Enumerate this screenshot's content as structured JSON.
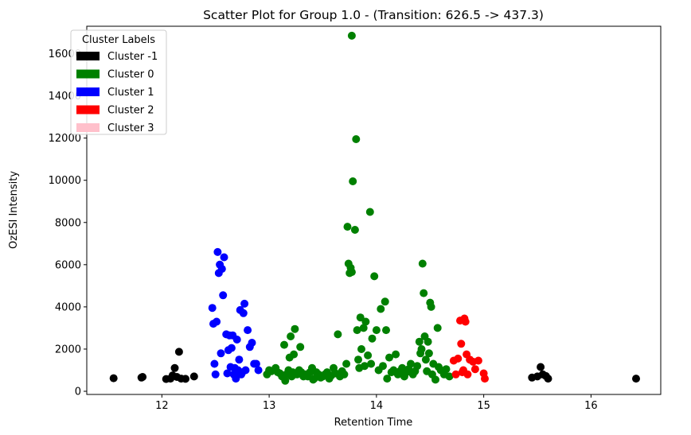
{
  "chart_data": {
    "type": "scatter",
    "title": "Scatter Plot for Group 1.0 -  (Transition: 626.5 -> 437.3)",
    "xlabel": "Retention Time",
    "ylabel": "OzESI Intensity",
    "xlim": [
      11.3,
      16.65
    ],
    "ylim": [
      -150,
      17300
    ],
    "xticks": [
      12,
      13,
      14,
      15,
      16
    ],
    "yticks": [
      0,
      2000,
      4000,
      6000,
      8000,
      10000,
      12000,
      14000,
      16000
    ],
    "grid": false,
    "legend": {
      "title": "Cluster Labels",
      "position": "top-left"
    },
    "series": [
      {
        "name": "Cluster -1",
        "color": "#000000",
        "points": [
          [
            11.55,
            620
          ],
          [
            11.81,
            650
          ],
          [
            11.82,
            680
          ],
          [
            12.04,
            580
          ],
          [
            12.08,
            600
          ],
          [
            12.1,
            750
          ],
          [
            12.12,
            1100
          ],
          [
            12.14,
            680
          ],
          [
            12.16,
            1870
          ],
          [
            12.18,
            600
          ],
          [
            12.22,
            590
          ],
          [
            12.3,
            700
          ],
          [
            15.45,
            650
          ],
          [
            15.5,
            700
          ],
          [
            15.53,
            1150
          ],
          [
            15.55,
            800
          ],
          [
            15.58,
            720
          ],
          [
            15.6,
            600
          ],
          [
            16.42,
            600
          ]
        ]
      },
      {
        "name": "Cluster 0",
        "color": "#008000",
        "points": [
          [
            12.98,
            800
          ],
          [
            13.0,
            1000
          ],
          [
            13.02,
            950
          ],
          [
            13.06,
            1100
          ],
          [
            13.08,
            900
          ],
          [
            13.1,
            850
          ],
          [
            13.12,
            700
          ],
          [
            13.14,
            2200
          ],
          [
            13.15,
            500
          ],
          [
            13.16,
            800
          ],
          [
            13.18,
            1000
          ],
          [
            13.19,
            1600
          ],
          [
            13.2,
            2600
          ],
          [
            13.21,
            700
          ],
          [
            13.22,
            900
          ],
          [
            13.23,
            1750
          ],
          [
            13.24,
            2950
          ],
          [
            13.26,
            800
          ],
          [
            13.28,
            1000
          ],
          [
            13.29,
            2100
          ],
          [
            13.3,
            900
          ],
          [
            13.32,
            700
          ],
          [
            13.34,
            800
          ],
          [
            13.36,
            700
          ],
          [
            13.38,
            900
          ],
          [
            13.4,
            1100
          ],
          [
            13.41,
            550
          ],
          [
            13.42,
            600
          ],
          [
            13.44,
            900
          ],
          [
            13.46,
            800
          ],
          [
            13.48,
            650
          ],
          [
            13.5,
            700
          ],
          [
            13.52,
            800
          ],
          [
            13.54,
            900
          ],
          [
            13.56,
            600
          ],
          [
            13.58,
            750
          ],
          [
            13.6,
            1100
          ],
          [
            13.62,
            850
          ],
          [
            13.64,
            2700
          ],
          [
            13.66,
            700
          ],
          [
            13.68,
            950
          ],
          [
            13.7,
            800
          ],
          [
            13.72,
            1300
          ],
          [
            13.73,
            7800
          ],
          [
            13.74,
            6050
          ],
          [
            13.75,
            5600
          ],
          [
            13.76,
            5850
          ],
          [
            13.77,
            5650
          ],
          [
            13.77,
            16850
          ],
          [
            13.78,
            9950
          ],
          [
            13.8,
            7650
          ],
          [
            13.81,
            11950
          ],
          [
            13.82,
            2900
          ],
          [
            13.83,
            1500
          ],
          [
            13.84,
            1100
          ],
          [
            13.85,
            3500
          ],
          [
            13.86,
            2000
          ],
          [
            13.88,
            3000
          ],
          [
            13.89,
            1200
          ],
          [
            13.9,
            3300
          ],
          [
            13.92,
            1700
          ],
          [
            13.94,
            8500
          ],
          [
            13.95,
            1300
          ],
          [
            13.96,
            2500
          ],
          [
            13.98,
            5450
          ],
          [
            14.0,
            2900
          ],
          [
            14.02,
            1000
          ],
          [
            14.04,
            3900
          ],
          [
            14.06,
            1200
          ],
          [
            14.08,
            4250
          ],
          [
            14.09,
            2900
          ],
          [
            14.1,
            600
          ],
          [
            14.12,
            1600
          ],
          [
            14.14,
            900
          ],
          [
            14.16,
            1000
          ],
          [
            14.18,
            1750
          ],
          [
            14.2,
            800
          ],
          [
            14.22,
            950
          ],
          [
            14.24,
            1100
          ],
          [
            14.26,
            700
          ],
          [
            14.28,
            900
          ],
          [
            14.3,
            1050
          ],
          [
            14.32,
            1300
          ],
          [
            14.34,
            800
          ],
          [
            14.36,
            950
          ],
          [
            14.38,
            1200
          ],
          [
            14.4,
            2350
          ],
          [
            14.41,
            1800
          ],
          [
            14.42,
            2000
          ],
          [
            14.43,
            6050
          ],
          [
            14.44,
            4650
          ],
          [
            14.45,
            2600
          ],
          [
            14.46,
            1500
          ],
          [
            14.47,
            950
          ],
          [
            14.48,
            2350
          ],
          [
            14.49,
            1800
          ],
          [
            14.5,
            4200
          ],
          [
            14.51,
            4000
          ],
          [
            14.52,
            800
          ],
          [
            14.53,
            1300
          ],
          [
            14.55,
            550
          ],
          [
            14.57,
            3000
          ],
          [
            14.58,
            1150
          ],
          [
            14.6,
            1000
          ],
          [
            14.63,
            800
          ],
          [
            14.65,
            1050
          ],
          [
            14.68,
            700
          ]
        ]
      },
      {
        "name": "Cluster 1",
        "color": "#0000ff",
        "points": [
          [
            12.47,
            3950
          ],
          [
            12.48,
            3200
          ],
          [
            12.49,
            1300
          ],
          [
            12.5,
            800
          ],
          [
            12.51,
            3300
          ],
          [
            12.52,
            6600
          ],
          [
            12.53,
            5600
          ],
          [
            12.54,
            6000
          ],
          [
            12.55,
            1800
          ],
          [
            12.56,
            5800
          ],
          [
            12.57,
            4550
          ],
          [
            12.58,
            6350
          ],
          [
            12.6,
            2700
          ],
          [
            12.61,
            850
          ],
          [
            12.62,
            1950
          ],
          [
            12.63,
            2650
          ],
          [
            12.64,
            1150
          ],
          [
            12.65,
            2050
          ],
          [
            12.66,
            2650
          ],
          [
            12.67,
            800
          ],
          [
            12.68,
            1100
          ],
          [
            12.69,
            600
          ],
          [
            12.7,
            2450
          ],
          [
            12.71,
            1000
          ],
          [
            12.72,
            1500
          ],
          [
            12.73,
            3850
          ],
          [
            12.74,
            800
          ],
          [
            12.75,
            900
          ],
          [
            12.76,
            3700
          ],
          [
            12.77,
            4150
          ],
          [
            12.78,
            1000
          ],
          [
            12.8,
            2900
          ],
          [
            12.82,
            2100
          ],
          [
            12.84,
            2300
          ],
          [
            12.86,
            1300
          ],
          [
            12.88,
            1300
          ],
          [
            12.9,
            1000
          ]
        ]
      },
      {
        "name": "Cluster 2",
        "color": "#ff0000",
        "points": [
          [
            14.72,
            1450
          ],
          [
            14.74,
            800
          ],
          [
            14.76,
            1550
          ],
          [
            14.78,
            3350
          ],
          [
            14.79,
            2250
          ],
          [
            14.8,
            900
          ],
          [
            14.81,
            1000
          ],
          [
            14.82,
            3450
          ],
          [
            14.83,
            3300
          ],
          [
            14.84,
            1750
          ],
          [
            14.85,
            800
          ],
          [
            14.87,
            1500
          ],
          [
            14.9,
            1400
          ],
          [
            14.92,
            1050
          ],
          [
            14.95,
            1450
          ],
          [
            15.0,
            850
          ],
          [
            15.01,
            600
          ]
        ]
      },
      {
        "name": "Cluster 3",
        "color": "#ffc0cb",
        "points": []
      }
    ]
  }
}
